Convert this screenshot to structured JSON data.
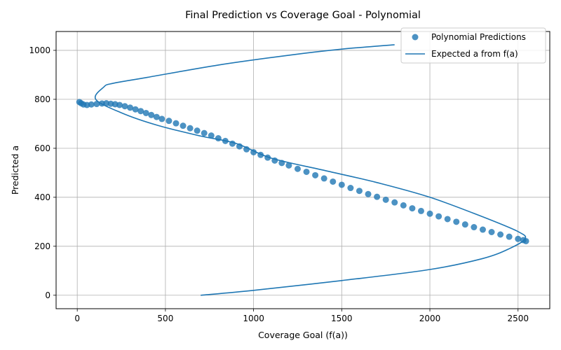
{
  "chart_data": {
    "type": "scatter",
    "title": "Final Prediction vs Coverage Goal - Polynomial",
    "xlabel": "Coverage Goal (f(a))",
    "ylabel": "Predicted a",
    "xlim": [
      -120,
      2680
    ],
    "ylim": [
      -55,
      1077
    ],
    "xticks": [
      0,
      500,
      1000,
      1500,
      2000,
      2500
    ],
    "yticks": [
      0,
      200,
      400,
      600,
      800,
      1000
    ],
    "grid": true,
    "legend_position": "top-right",
    "series": [
      {
        "name": "Polynomial Predictions",
        "kind": "scatter",
        "color": "#1f77b4",
        "points": [
          [
            12,
            789
          ],
          [
            22,
            784
          ],
          [
            35,
            779
          ],
          [
            55,
            777
          ],
          [
            80,
            779
          ],
          [
            110,
            781
          ],
          [
            140,
            783
          ],
          [
            165,
            784
          ],
          [
            190,
            782
          ],
          [
            215,
            780
          ],
          [
            240,
            777
          ],
          [
            270,
            772
          ],
          [
            300,
            766
          ],
          [
            330,
            759
          ],
          [
            360,
            752
          ],
          [
            390,
            744
          ],
          [
            420,
            736
          ],
          [
            450,
            728
          ],
          [
            480,
            720
          ],
          [
            520,
            712
          ],
          [
            560,
            702
          ],
          [
            600,
            692
          ],
          [
            640,
            682
          ],
          [
            680,
            672
          ],
          [
            720,
            662
          ],
          [
            760,
            652
          ],
          [
            800,
            641
          ],
          [
            840,
            630
          ],
          [
            880,
            619
          ],
          [
            920,
            608
          ],
          [
            960,
            596
          ],
          [
            1000,
            584
          ],
          [
            1040,
            573
          ],
          [
            1080,
            562
          ],
          [
            1120,
            550
          ],
          [
            1160,
            540
          ],
          [
            1200,
            530
          ],
          [
            1250,
            516
          ],
          [
            1300,
            504
          ],
          [
            1350,
            490
          ],
          [
            1400,
            477
          ],
          [
            1450,
            464
          ],
          [
            1500,
            451
          ],
          [
            1550,
            438
          ],
          [
            1600,
            426
          ],
          [
            1650,
            413
          ],
          [
            1700,
            402
          ],
          [
            1750,
            390
          ],
          [
            1800,
            379
          ],
          [
            1850,
            367
          ],
          [
            1900,
            355
          ],
          [
            1950,
            344
          ],
          [
            2000,
            333
          ],
          [
            2050,
            322
          ],
          [
            2100,
            311
          ],
          [
            2150,
            300
          ],
          [
            2200,
            289
          ],
          [
            2250,
            278
          ],
          [
            2300,
            268
          ],
          [
            2350,
            258
          ],
          [
            2400,
            248
          ],
          [
            2450,
            239
          ],
          [
            2500,
            230
          ],
          [
            2530,
            225
          ],
          [
            2545,
            221
          ]
        ]
      },
      {
        "name": "Expected a from f(a)",
        "kind": "line",
        "color": "#1f77b4",
        "points": [
          [
            700,
            0
          ],
          [
            1000,
            20
          ],
          [
            1500,
            60
          ],
          [
            2000,
            105
          ],
          [
            2300,
            150
          ],
          [
            2450,
            190
          ],
          [
            2540,
            230
          ],
          [
            2500,
            260
          ],
          [
            2300,
            320
          ],
          [
            2000,
            400
          ],
          [
            1700,
            460
          ],
          [
            1400,
            510
          ],
          [
            1100,
            560
          ],
          [
            900,
            620
          ],
          [
            700,
            650
          ],
          [
            450,
            695
          ],
          [
            250,
            745
          ],
          [
            105,
            800
          ],
          [
            150,
            850
          ],
          [
            200,
            865
          ],
          [
            400,
            890
          ],
          [
            800,
            940
          ],
          [
            1200,
            980
          ],
          [
            1500,
            1005
          ],
          [
            1800,
            1023
          ]
        ]
      }
    ]
  }
}
